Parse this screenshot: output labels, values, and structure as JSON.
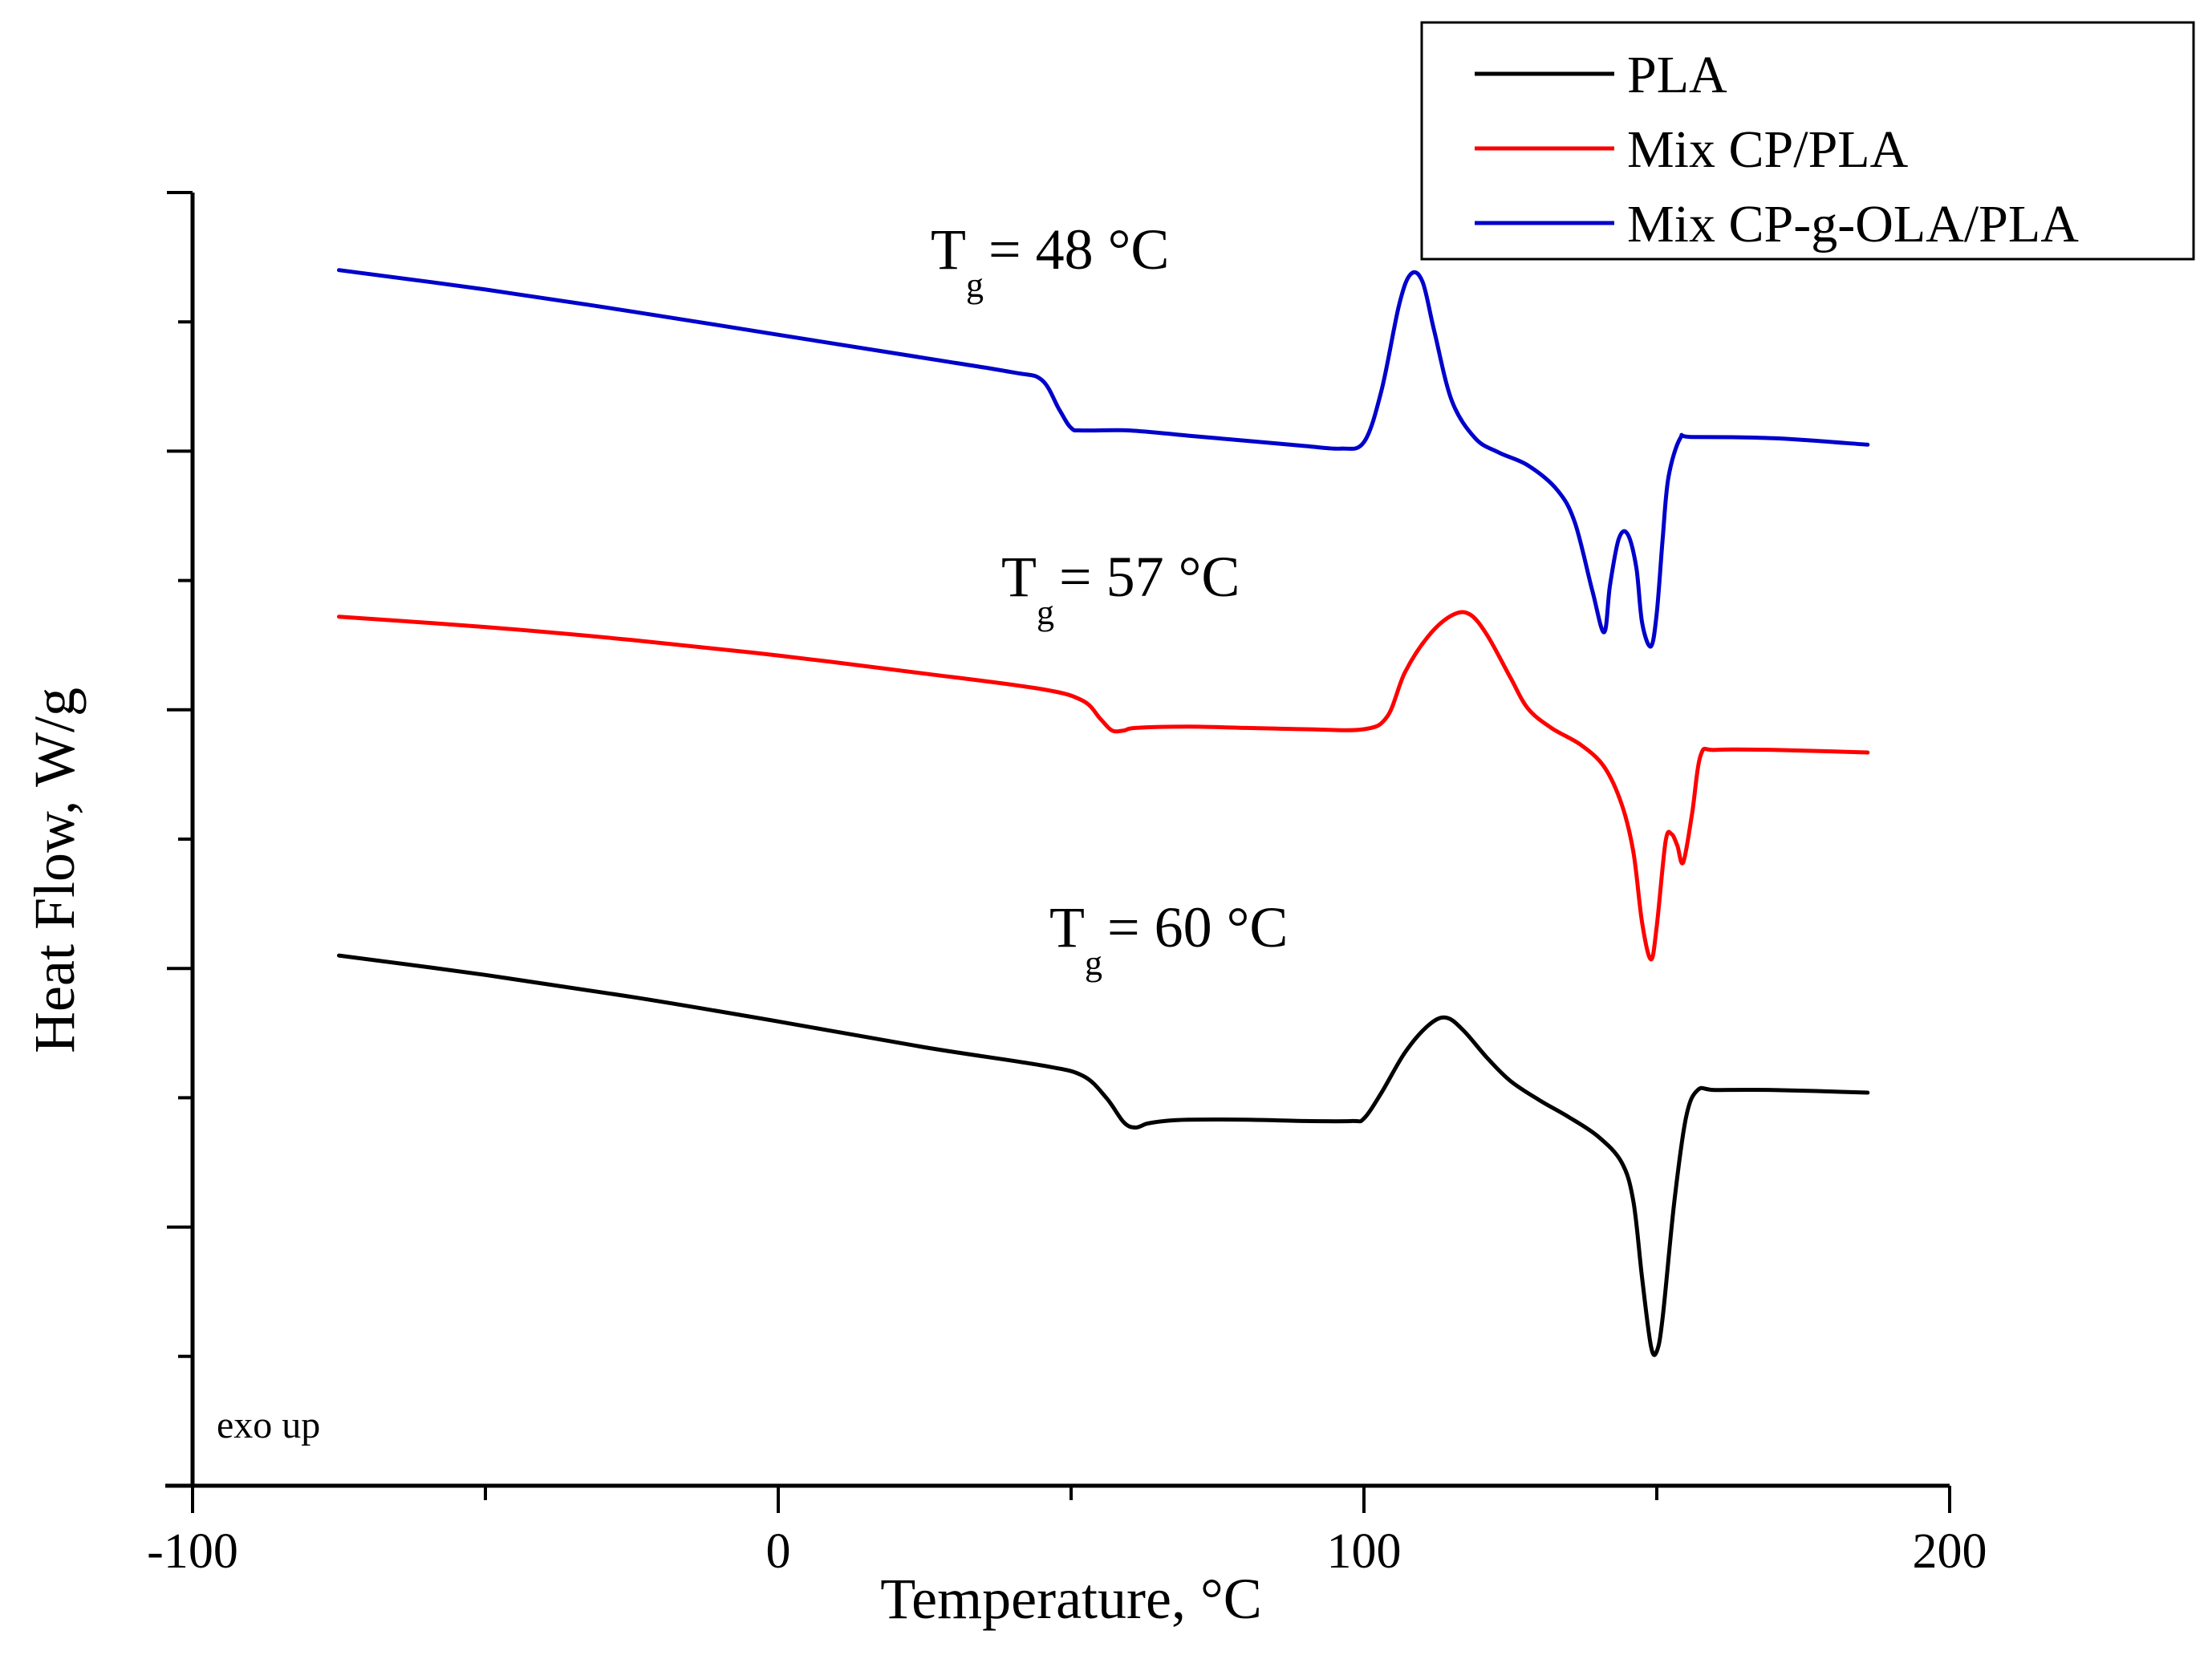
{
  "chart_data": {
    "type": "line",
    "title": "",
    "xlabel": "Temperature, °C",
    "ylabel": "Heat Flow, W/g",
    "xlim": [
      -100,
      200
    ],
    "x_ticks": [
      -100,
      0,
      100,
      200
    ],
    "x_tick_labels": [
      "-100",
      "0",
      "100",
      "200"
    ],
    "ylim": [
      0,
      10
    ],
    "y_ticks_shown": false,
    "grid": false,
    "legend_position": "top-right",
    "note": "exo up",
    "series": [
      {
        "name": "PLA",
        "color": "#000000",
        "x": [
          -75,
          -50,
          -25,
          0,
          25,
          45,
          52,
          56,
          59,
          61,
          63,
          66,
          70,
          80,
          90,
          98,
          100,
          103,
          107,
          111,
          114,
          117,
          121,
          125,
          130,
          135,
          140,
          144,
          146,
          147.5,
          149,
          150,
          151,
          153,
          155,
          157,
          160,
          170,
          186
        ],
        "y": [
          4.1,
          3.95,
          3.78,
          3.59,
          3.39,
          3.25,
          3.17,
          3.0,
          2.81,
          2.77,
          2.8,
          2.82,
          2.83,
          2.83,
          2.82,
          2.82,
          2.84,
          3.04,
          3.35,
          3.56,
          3.62,
          3.52,
          3.31,
          3.13,
          2.98,
          2.85,
          2.7,
          2.5,
          2.2,
          1.6,
          1.08,
          1.04,
          1.3,
          2.2,
          2.85,
          3.06,
          3.06,
          3.06,
          3.04
        ]
      },
      {
        "name": "Mix CP/PLA",
        "color": "#ff0000",
        "x": [
          -75,
          -50,
          -25,
          0,
          25,
          45,
          52,
          55,
          57,
          59,
          61,
          70,
          80,
          90,
          100,
          104,
          107,
          111,
          115,
          118,
          121,
          125,
          128,
          132,
          137,
          141,
          144,
          146,
          147.5,
          149,
          150,
          151.5,
          152.5,
          153.5,
          154.5,
          156,
          157.5,
          160,
          170,
          186
        ],
        "y": [
          6.72,
          6.64,
          6.54,
          6.42,
          6.28,
          6.16,
          6.07,
          5.93,
          5.84,
          5.84,
          5.86,
          5.87,
          5.86,
          5.85,
          5.85,
          5.95,
          6.29,
          6.57,
          6.73,
          6.74,
          6.58,
          6.25,
          6.01,
          5.86,
          5.73,
          5.56,
          5.27,
          4.9,
          4.35,
          4.07,
          4.33,
          4.98,
          5.04,
          4.95,
          4.82,
          5.19,
          5.65,
          5.69,
          5.69,
          5.67
        ]
      },
      {
        "name": "Mix CP-g-OLA/PLA",
        "color": "#0000cc",
        "x": [
          -75,
          -50,
          -25,
          0,
          25,
          40,
          45,
          48,
          50,
          52,
          60,
          70,
          80,
          90,
          96,
          100,
          103,
          106,
          108,
          110,
          112,
          115,
          119,
          123,
          128,
          133,
          136,
          139,
          141,
          142,
          143.5,
          145,
          146.5,
          147.5,
          149,
          150,
          151,
          152,
          154,
          156,
          170,
          186
        ],
        "y": [
          9.4,
          9.25,
          9.08,
          8.9,
          8.72,
          8.61,
          8.55,
          8.32,
          8.18,
          8.16,
          8.16,
          8.12,
          8.08,
          8.04,
          8.02,
          8.07,
          8.47,
          9.13,
          9.37,
          9.31,
          8.93,
          8.39,
          8.1,
          7.99,
          7.89,
          7.7,
          7.45,
          6.92,
          6.6,
          6.96,
          7.32,
          7.36,
          7.1,
          6.67,
          6.49,
          6.75,
          7.32,
          7.8,
          8.1,
          8.11,
          8.1,
          8.05
        ]
      }
    ],
    "annotations": [
      {
        "main": "T",
        "sub": "g",
        "rest": " = 48 °C"
      },
      {
        "main": "T",
        "sub": "g",
        "rest": " = 57 °C"
      },
      {
        "main": "T",
        "sub": "g",
        "rest": " = 60 °C"
      }
    ]
  }
}
